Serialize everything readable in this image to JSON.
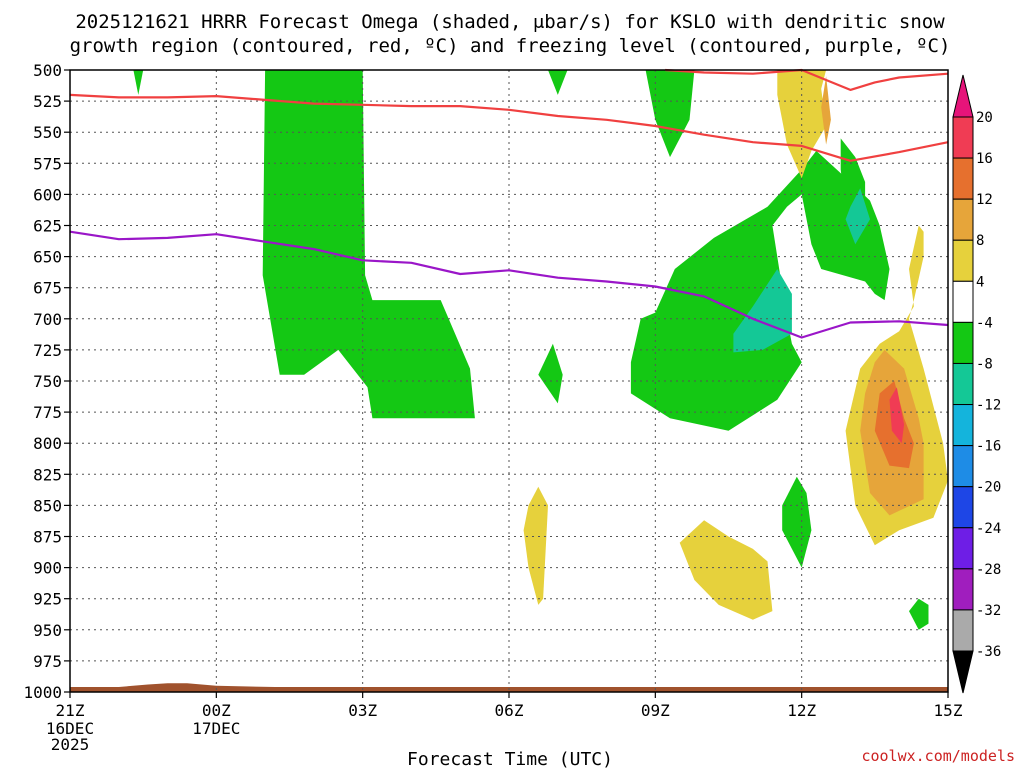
{
  "chart_data": {
    "type": "contour",
    "title_line1": "2025121621 HRRR Forecast Omega (shaded, μbar/s) for KSLO with dendritic snow",
    "title_line2": "growth region (contoured, red, ºC) and freezing level (contoured, purple, ºC)",
    "xlabel": "Forecast Time (UTC)",
    "credit": "coolwx.com/models",
    "x_hours_range": [
      0,
      18
    ],
    "x_ticks": [
      {
        "h": 0,
        "l1": "21Z",
        "l2": "16DEC",
        "l3": "2025"
      },
      {
        "h": 3,
        "l1": "00Z",
        "l2": "17DEC",
        "l3": ""
      },
      {
        "h": 6,
        "l1": "03Z",
        "l2": "",
        "l3": ""
      },
      {
        "h": 9,
        "l1": "06Z",
        "l2": "",
        "l3": ""
      },
      {
        "h": 12,
        "l1": "09Z",
        "l2": "",
        "l3": ""
      },
      {
        "h": 15,
        "l1": "12Z",
        "l2": "",
        "l3": ""
      },
      {
        "h": 18,
        "l1": "15Z",
        "l2": "",
        "l3": ""
      }
    ],
    "y_pressure_range": [
      1000,
      500
    ],
    "y_ticks": [
      500,
      525,
      550,
      575,
      600,
      625,
      650,
      675,
      700,
      725,
      750,
      775,
      800,
      825,
      850,
      875,
      900,
      925,
      950,
      975,
      1000
    ],
    "colorbar": {
      "labels": [
        "20",
        "16",
        "12",
        "8",
        "4",
        "-4",
        "-8",
        "-12",
        "-16",
        "-20",
        "-24",
        "-28",
        "-32",
        "-36"
      ],
      "colors": [
        "#f03c54",
        "#e6702e",
        "#e6a53a",
        "#e6d13c",
        "#ffffff",
        "#14c814",
        "#14c896",
        "#14b4dc",
        "#1e8ce6",
        "#1e46e6",
        "#6e1ee6",
        "#a01ebe",
        "#aaaaaa"
      ],
      "top_cap_color": "#e6147a",
      "bottom_cap_color": "#000000"
    },
    "series": [
      {
        "color": "#f04040",
        "points": [
          [
            0,
            520
          ],
          [
            1,
            522
          ],
          [
            2,
            522
          ],
          [
            3,
            521
          ],
          [
            4,
            524
          ],
          [
            5,
            527
          ],
          [
            6,
            528
          ],
          [
            7,
            529
          ],
          [
            8,
            529
          ],
          [
            9,
            532
          ],
          [
            10,
            537
          ],
          [
            11,
            540
          ],
          [
            12,
            545
          ],
          [
            13,
            552
          ],
          [
            14,
            558
          ],
          [
            15,
            561
          ],
          [
            16,
            573
          ],
          [
            17,
            566
          ],
          [
            18,
            558
          ]
        ]
      },
      {
        "color": "#f04040",
        "points": [
          [
            12.2,
            500
          ],
          [
            13,
            502
          ],
          [
            14,
            503
          ],
          [
            15,
            500
          ],
          [
            15.5,
            508
          ],
          [
            16,
            516
          ],
          [
            16.5,
            510
          ],
          [
            17,
            506
          ],
          [
            18,
            503
          ]
        ]
      },
      {
        "color": "#9a16c8",
        "points": [
          [
            0,
            630
          ],
          [
            1,
            636
          ],
          [
            2,
            635
          ],
          [
            3,
            632
          ],
          [
            4,
            638
          ],
          [
            5,
            644
          ],
          [
            6,
            653
          ],
          [
            7,
            655
          ],
          [
            8,
            664
          ],
          [
            9,
            661
          ],
          [
            10,
            667
          ],
          [
            11,
            670
          ],
          [
            12,
            674
          ],
          [
            13,
            682
          ],
          [
            14,
            700
          ],
          [
            15,
            715
          ],
          [
            16,
            703
          ],
          [
            17,
            702
          ],
          [
            18,
            705
          ]
        ]
      }
    ],
    "contour_regions": [
      {
        "value": "-4",
        "color": "#14c814",
        "points": [
          [
            1.3,
            500
          ],
          [
            1.5,
            500
          ],
          [
            1.4,
            520
          ]
        ]
      },
      {
        "value": "-4",
        "color": "#14c814",
        "points": [
          [
            4,
            500
          ],
          [
            6,
            500
          ],
          [
            6.05,
            665
          ],
          [
            6.2,
            685
          ],
          [
            7.6,
            685
          ],
          [
            8.2,
            740
          ],
          [
            8.3,
            780
          ],
          [
            6.2,
            780
          ],
          [
            6.1,
            755
          ],
          [
            5.5,
            725
          ],
          [
            4.8,
            745
          ],
          [
            4.3,
            745
          ],
          [
            3.95,
            665
          ]
        ]
      },
      {
        "value": "-4",
        "color": "#14c814",
        "points": [
          [
            9.8,
            500
          ],
          [
            10.2,
            500
          ],
          [
            10,
            520
          ]
        ]
      },
      {
        "value": "-4",
        "color": "#14c814",
        "points": [
          [
            11.8,
            500
          ],
          [
            12.8,
            500
          ],
          [
            12.7,
            540
          ],
          [
            12.3,
            570
          ],
          [
            12,
            540
          ]
        ]
      },
      {
        "value": "-4",
        "color": "#14c814",
        "points": [
          [
            9.9,
            720
          ],
          [
            10.1,
            745
          ],
          [
            10,
            768
          ],
          [
            9.6,
            745
          ]
        ]
      },
      {
        "value": "-4",
        "color": "#14c814",
        "points": [
          [
            12,
            695
          ],
          [
            12.4,
            660
          ],
          [
            13.2,
            635
          ],
          [
            14.3,
            610
          ],
          [
            15,
            580
          ],
          [
            15.3,
            565
          ],
          [
            16,
            590
          ],
          [
            16.4,
            605
          ],
          [
            16.6,
            625
          ],
          [
            16.8,
            660
          ],
          [
            16.7,
            685
          ],
          [
            16.5,
            680
          ],
          [
            16.3,
            670
          ],
          [
            15.4,
            660
          ],
          [
            15.2,
            640
          ],
          [
            15,
            600
          ],
          [
            14.7,
            610
          ],
          [
            14.4,
            625
          ],
          [
            14.7,
            700
          ],
          [
            14.8,
            720
          ],
          [
            15,
            735
          ],
          [
            14.5,
            765
          ],
          [
            13.5,
            790
          ],
          [
            12.3,
            780
          ],
          [
            11.5,
            760
          ],
          [
            11.5,
            735
          ],
          [
            11.7,
            700
          ]
        ]
      },
      {
        "value": "-4",
        "color": "#14c814",
        "points": [
          [
            15.8,
            555
          ],
          [
            16.1,
            570
          ],
          [
            16.3,
            590
          ],
          [
            16.3,
            615
          ],
          [
            16.4,
            640
          ],
          [
            16.1,
            665
          ],
          [
            16,
            640
          ],
          [
            15.9,
            615
          ],
          [
            15.8,
            580
          ]
        ]
      },
      {
        "value": "-4",
        "color": "#14c814",
        "points": [
          [
            14.6,
            850
          ],
          [
            14.9,
            827
          ],
          [
            15.1,
            840
          ],
          [
            15.2,
            870
          ],
          [
            15,
            900
          ],
          [
            14.6,
            870
          ]
        ]
      },
      {
        "value": "-4",
        "color": "#14c814",
        "points": [
          [
            17.4,
            925
          ],
          [
            17.6,
            930
          ],
          [
            17.6,
            945
          ],
          [
            17.4,
            950
          ],
          [
            17.2,
            935
          ]
        ]
      },
      {
        "value": "-8",
        "color": "#14c896",
        "points": [
          [
            13.6,
            712
          ],
          [
            14,
            690
          ],
          [
            14.5,
            660
          ],
          [
            14.8,
            680
          ],
          [
            14.8,
            712
          ],
          [
            14.2,
            725
          ],
          [
            13.6,
            727
          ]
        ]
      },
      {
        "value": "-8",
        "color": "#14c896",
        "points": [
          [
            16,
            610
          ],
          [
            16.2,
            595
          ],
          [
            16.4,
            620
          ],
          [
            16.1,
            640
          ],
          [
            15.9,
            620
          ]
        ]
      },
      {
        "value": "4",
        "color": "#e6d13c",
        "points": [
          [
            14.5,
            500
          ],
          [
            15.5,
            500
          ],
          [
            15.4,
            515
          ],
          [
            15.5,
            545
          ],
          [
            15.2,
            565
          ],
          [
            15,
            587
          ],
          [
            14.7,
            560
          ],
          [
            14.5,
            520
          ]
        ]
      },
      {
        "value": "4",
        "color": "#e6d13c",
        "points": [
          [
            17.4,
            625
          ],
          [
            17.5,
            630
          ],
          [
            17.5,
            650
          ],
          [
            17.3,
            685
          ],
          [
            17.2,
            700
          ],
          [
            17.5,
            740
          ],
          [
            17.9,
            800
          ],
          [
            18,
            830
          ],
          [
            17.7,
            860
          ],
          [
            17,
            870
          ],
          [
            16.5,
            882
          ],
          [
            16.1,
            850
          ],
          [
            15.9,
            790
          ],
          [
            16.2,
            740
          ],
          [
            16.6,
            720
          ],
          [
            17,
            710
          ],
          [
            17.3,
            690
          ],
          [
            17.2,
            660
          ]
        ]
      },
      {
        "value": "4",
        "color": "#e6d13c",
        "points": [
          [
            9.4,
            850
          ],
          [
            9.6,
            835
          ],
          [
            9.8,
            850
          ],
          [
            9.7,
            925
          ],
          [
            9.6,
            930
          ],
          [
            9.4,
            900
          ],
          [
            9.3,
            870
          ]
        ]
      },
      {
        "value": "4",
        "color": "#e6d13c",
        "points": [
          [
            12.5,
            880
          ],
          [
            13,
            862
          ],
          [
            13.5,
            875
          ],
          [
            14,
            885
          ],
          [
            14.3,
            895
          ],
          [
            14.4,
            935
          ],
          [
            14,
            942
          ],
          [
            13.3,
            930
          ],
          [
            12.8,
            910
          ]
        ]
      },
      {
        "value": "8",
        "color": "#e6a53a",
        "points": [
          [
            15.5,
            505
          ],
          [
            15.6,
            540
          ],
          [
            15.5,
            560
          ],
          [
            15.4,
            530
          ]
        ]
      },
      {
        "value": "8",
        "color": "#e6a53a",
        "points": [
          [
            16.7,
            725
          ],
          [
            17.1,
            740
          ],
          [
            17.4,
            780
          ],
          [
            17.5,
            800
          ],
          [
            17.5,
            845
          ],
          [
            16.8,
            858
          ],
          [
            16.4,
            840
          ],
          [
            16.2,
            790
          ],
          [
            16.3,
            760
          ],
          [
            16.5,
            735
          ]
        ]
      },
      {
        "value": "12",
        "color": "#e6702e",
        "points": [
          [
            16.9,
            750
          ],
          [
            17.1,
            780
          ],
          [
            17.3,
            800
          ],
          [
            17.2,
            820
          ],
          [
            16.8,
            818
          ],
          [
            16.5,
            790
          ],
          [
            16.6,
            760
          ]
        ]
      },
      {
        "value": "16",
        "color": "#f03c54",
        "points": [
          [
            16.95,
            755
          ],
          [
            17.1,
            785
          ],
          [
            17.05,
            800
          ],
          [
            16.85,
            790
          ],
          [
            16.8,
            765
          ]
        ]
      }
    ],
    "terrain_color": "#a0522d",
    "terrain_points": [
      [
        0,
        1000
      ],
      [
        0,
        996
      ],
      [
        1,
        996
      ],
      [
        1.6,
        994
      ],
      [
        2,
        993
      ],
      [
        2.4,
        993
      ],
      [
        3,
        995
      ],
      [
        4.2,
        996
      ],
      [
        12,
        996
      ],
      [
        13.5,
        996
      ],
      [
        14.5,
        996
      ],
      [
        18,
        996
      ],
      [
        18,
        1000
      ]
    ]
  }
}
